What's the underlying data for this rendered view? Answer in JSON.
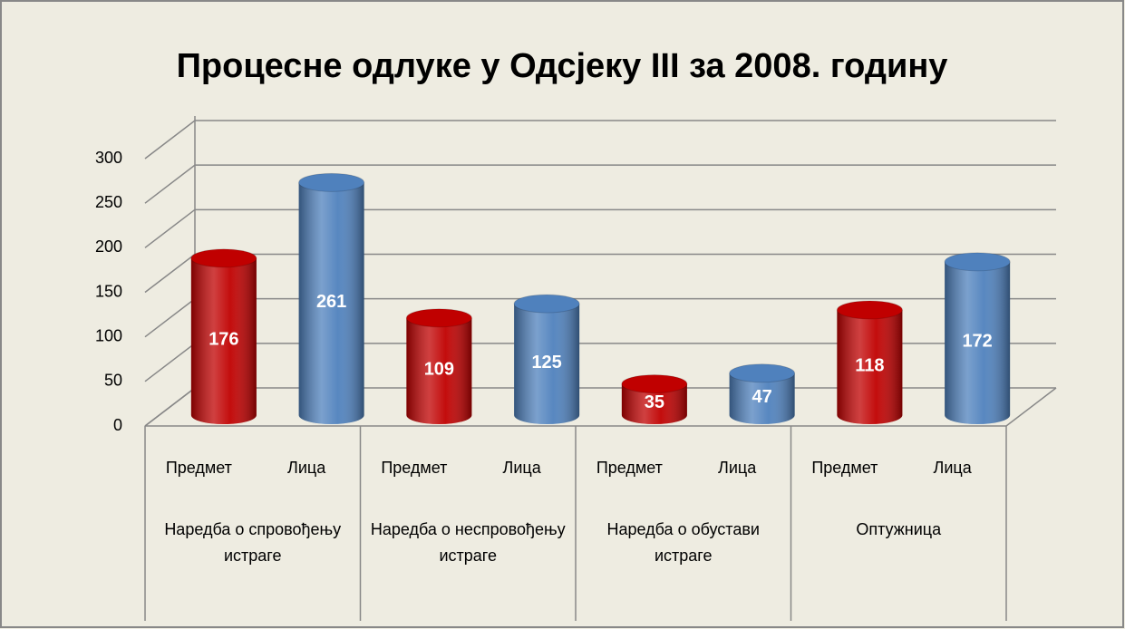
{
  "chart_data": {
    "type": "bar3d",
    "title": "Процесне одлуке у Одсјеку III за 2008. годину",
    "categories": [
      "Предмет",
      "Лица",
      "Предмет",
      "Лица",
      "Предмет",
      "Лица",
      "Предмет",
      "Лица"
    ],
    "groups": [
      "Наредба о спровођењу истраге",
      "Наредба о неспровођењу истраге",
      "Наредба о обустави истраге",
      "Оптужница"
    ],
    "values": [
      176,
      261,
      109,
      125,
      35,
      47,
      118,
      172
    ],
    "colors": [
      "#c00000",
      "#4f81bd",
      "#c00000",
      "#4f81bd",
      "#c00000",
      "#4f81bd",
      "#c00000",
      "#4f81bd"
    ],
    "ylim": [
      0,
      300
    ],
    "yticks": [
      0,
      50,
      100,
      150,
      200,
      250,
      300
    ],
    "grid": true
  }
}
